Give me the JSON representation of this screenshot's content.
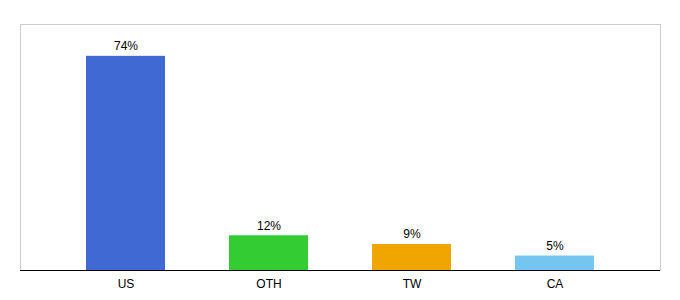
{
  "chart_data": {
    "type": "bar",
    "categories": [
      "US",
      "OTH",
      "TW",
      "CA"
    ],
    "values": [
      74,
      12,
      9,
      5
    ],
    "value_labels": [
      "74%",
      "12%",
      "9%",
      "5%"
    ],
    "colors": [
      "#4169d4",
      "#33cc33",
      "#f0a500",
      "#74c6f0"
    ],
    "ylim": [
      0,
      85
    ],
    "data_labels": true,
    "tick_labels": "x",
    "grid": false
  }
}
